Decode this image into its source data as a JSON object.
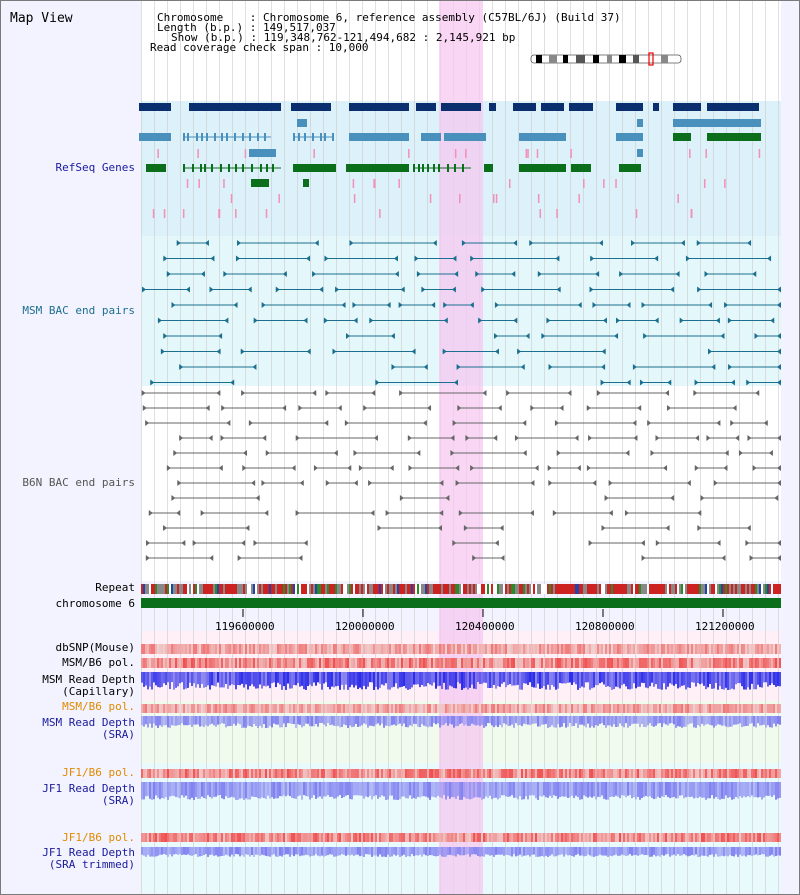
{
  "view": {
    "title": "Map View"
  },
  "info": {
    "line1": "Chromosome    : Chromosome 6, reference assembly (C57BL/6J) (Build 37)",
    "line2": "Length (b.p.) : 149,517,037",
    "line3": "Show (b.p.) : 119,348,762-121,494,682 : 2,145,921 bp",
    "line4": "Read coverage check span : 10,000"
  },
  "tracks": {
    "refseq": "RefSeq Genes",
    "msm_bac": "MSM BAC end pairs",
    "b6n_bac": "B6N BAC end pairs",
    "repeat": "Repeat",
    "chromosome": "chromosome 6",
    "dbsnp": "dbSNP(Mouse)",
    "msm_pol1": "MSM/B6 pol.",
    "msm_depth_cap": "MSM Read Depth\n(Capillary)",
    "msm_pol2": "MSM/B6 pol.",
    "msm_depth_sra": "MSM Read Depth\n(SRA)",
    "jf1_pol1": "JF1/B6 pol.",
    "jf1_depth_sra": "JF1 Read Depth\n(SRA)",
    "jf1_pol2": "JF1/B6 pol.",
    "jf1_depth_trim": "JF1 Read Depth\n(SRA trimmed)"
  },
  "axis": {
    "ticks": [
      "119600000",
      "120000000",
      "120400000",
      "120800000",
      "121200000"
    ]
  },
  "colors": {
    "refseq_dark": "#0b2f6e",
    "refseq_mid": "#4a90bd",
    "refseq_green": "#0a6e1a",
    "msm_bac": "#1c6f8f",
    "b6n_bac": "#666666",
    "highlight": "#f6c8f0",
    "depth_blue": "#2a2ae8",
    "depth_violet": "#7f7ff0",
    "pol_red": "#ee3a3a",
    "label_blue": "#1a1a9c",
    "label_orange": "#e08a00",
    "label_teal": "#1c6f8f"
  }
}
